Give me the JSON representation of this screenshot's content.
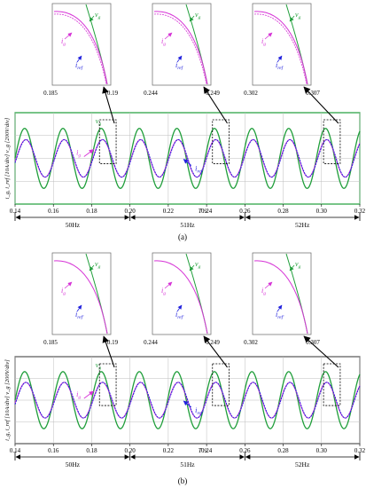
{
  "colors": {
    "grid_voltage": "#1f9e3a",
    "grid_current": "#d633d6",
    "reference_current": "#2222dd",
    "gridline": "#bdbdbd",
    "panel_border_a": "#1f9e3a",
    "panel_border_b": "#555555",
    "text": "#000000"
  },
  "chart_data": [
    {
      "type": "line",
      "panel_label": "(a)",
      "xlabel": "T /s",
      "ylabel": "i_g, i_ref [10A/div]  v_g [200V/div]",
      "xlim": [
        0.14,
        0.32
      ],
      "x_ticks": [
        "0.14",
        "0.16",
        "0.18",
        "0.20",
        "0.22",
        "0.24",
        "0.26",
        "0.28",
        "0.30",
        "0.32"
      ],
      "grid": true,
      "frequency_segments": [
        {
          "label": "50Hz",
          "from": 0.14,
          "to": 0.2,
          "freq_hz": 50
        },
        {
          "label": "51Hz",
          "from": 0.2,
          "to": 0.26,
          "freq_hz": 51
        },
        {
          "label": "52Hz",
          "from": 0.26,
          "to": 0.32,
          "freq_hz": 52
        }
      ],
      "series": [
        {
          "name": "v_g",
          "label": "v",
          "label_sub": "g",
          "role": "grid voltage",
          "amplitude_div": 1.6
        },
        {
          "name": "i_g",
          "label": "i",
          "label_sub": "g",
          "role": "grid current",
          "amplitude_div": 1.0
        },
        {
          "name": "i_ref",
          "label": "i",
          "label_sub": "ref",
          "role": "reference current",
          "amplitude_div": 1.0
        }
      ],
      "zoom_windows": [
        {
          "from_label": "0.185",
          "to_label": "0.19",
          "from": 0.185,
          "to": 0.19
        },
        {
          "from_label": "0.244",
          "to_label": "0.249",
          "from": 0.244,
          "to": 0.249
        },
        {
          "from_label": "0.302",
          "to_label": "0.307",
          "from": 0.302,
          "to": 0.307
        }
      ]
    },
    {
      "type": "line",
      "panel_label": "(b)",
      "xlabel": "T /s",
      "ylabel": "i_g, i_ref [10A/div]  v_g [200V/div]",
      "xlim": [
        0.14,
        0.32
      ],
      "x_ticks": [
        "0.14",
        "0.16",
        "0.18",
        "0.20",
        "0.22",
        "0.24",
        "0.26",
        "0.28",
        "0.30",
        "0.32"
      ],
      "grid": true,
      "frequency_segments": [
        {
          "label": "50Hz",
          "from": 0.14,
          "to": 0.2,
          "freq_hz": 50
        },
        {
          "label": "51Hz",
          "from": 0.2,
          "to": 0.26,
          "freq_hz": 51
        },
        {
          "label": "52Hz",
          "from": 0.26,
          "to": 0.32,
          "freq_hz": 52
        }
      ],
      "series": [
        {
          "name": "v_g",
          "label": "v",
          "label_sub": "g",
          "role": "grid voltage",
          "amplitude_div": 1.6
        },
        {
          "name": "i_g",
          "label": "i",
          "label_sub": "g",
          "role": "grid current",
          "amplitude_div": 1.0
        },
        {
          "name": "i_ref",
          "label": "i",
          "label_sub": "ref'",
          "role": "reference current",
          "amplitude_div": 1.0
        }
      ],
      "zoom_windows": [
        {
          "from_label": "0.185",
          "to_label": "0.19",
          "from": 0.185,
          "to": 0.19
        },
        {
          "from_label": "0.244",
          "to_label": "0.249",
          "from": 0.244,
          "to": 0.249
        },
        {
          "from_label": "0.302",
          "to_label": "0.307",
          "from": 0.302,
          "to": 0.307
        }
      ]
    }
  ]
}
